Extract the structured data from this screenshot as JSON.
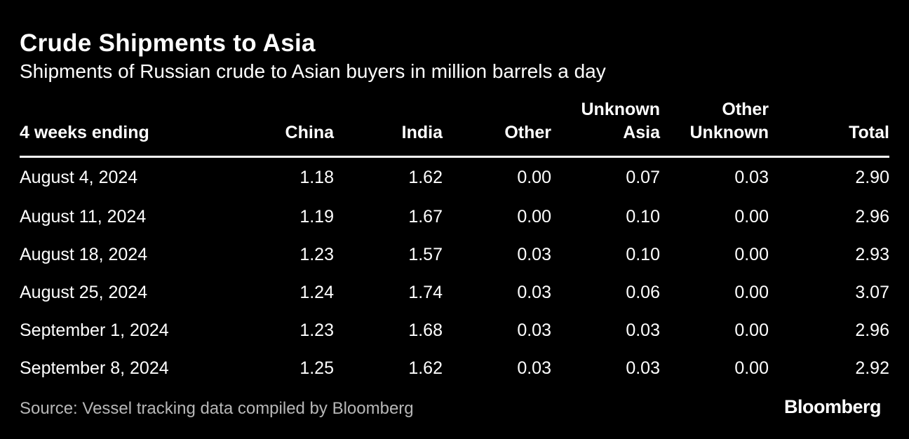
{
  "chart_data": {
    "type": "table",
    "title": "Crude Shipments to Asia",
    "subtitle": "Shipments of Russian crude to Asian buyers in million barrels a day",
    "columns": [
      [
        "4 weeks ending"
      ],
      [
        "China"
      ],
      [
        "India"
      ],
      [
        "Other"
      ],
      [
        "Unknown",
        "Asia"
      ],
      [
        "Other",
        "Unknown"
      ],
      [
        "Total"
      ]
    ],
    "rows": [
      [
        "August 4, 2024",
        "1.18",
        "1.62",
        "0.00",
        "0.07",
        "0.03",
        "2.90"
      ],
      [
        "August 11, 2024",
        "1.19",
        "1.67",
        "0.00",
        "0.10",
        "0.00",
        "2.96"
      ],
      [
        "August 18, 2024",
        "1.23",
        "1.57",
        "0.03",
        "0.10",
        "0.00",
        "2.93"
      ],
      [
        "August 25, 2024",
        "1.24",
        "1.74",
        "0.03",
        "0.06",
        "0.00",
        "3.07"
      ],
      [
        "September 1, 2024",
        "1.23",
        "1.68",
        "0.03",
        "0.03",
        "0.00",
        "2.96"
      ],
      [
        "September 8, 2024",
        "1.25",
        "1.62",
        "0.03",
        "0.03",
        "0.00",
        "2.92"
      ]
    ],
    "units": "million barrels a day"
  },
  "source": "Source: Vessel tracking data compiled by Bloomberg",
  "brand": "Bloomberg",
  "colors": {
    "background": "#000000",
    "text": "#ffffff",
    "source_text": "#b7b7b7"
  }
}
